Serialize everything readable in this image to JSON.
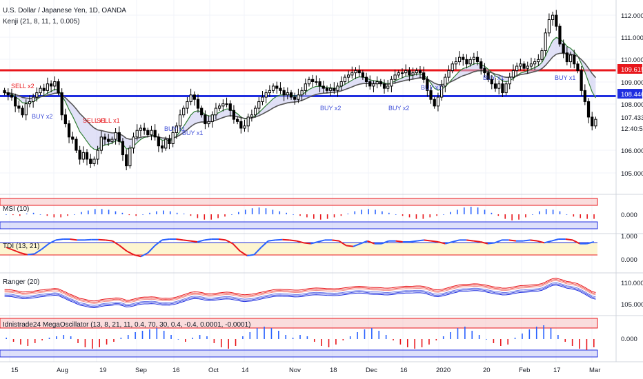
{
  "header": {
    "symbol": "U.S. Dollar / Japanese Yen, 1D, OANDA",
    "indicator": "Kenji (21, 8, 11, 1, 0.005)"
  },
  "price_axis": {
    "ticks": [
      "112.000",
      "111.000",
      "110.000",
      "109.000",
      "108.000",
      "107.433",
      "106.000",
      "105.000"
    ],
    "markers": [
      {
        "label": "109.615",
        "color": "#e8161b"
      },
      {
        "label": "108.446",
        "color": "#1f2ee0"
      },
      {
        "label": "12:40:59",
        "color": "#ffffff"
      }
    ]
  },
  "signals": {
    "sell_labels": [
      "SELL x2",
      "SELL x1",
      "SELL x1"
    ],
    "buy_labels": [
      "BUY x2",
      "BUY x1",
      "BUY x1",
      "BUY x2",
      "BUY x2",
      "BUY x1",
      "BUY x1",
      "BUY x1"
    ]
  },
  "panes": {
    "msi": {
      "title": "MSI (10)",
      "tick": "0.000"
    },
    "tdi": {
      "title": "TDI (13, 21)",
      "ticks": [
        "1.000",
        "0.000"
      ]
    },
    "ranger": {
      "title": "Ranger (20)",
      "ticks": [
        "110.000",
        "105.000"
      ]
    },
    "mega": {
      "title": "Idnistrade24 MegaOscillator (13, 8, 21, 11, 0.4, 70, 30, 0.4, -0.4, 0.0001, -0.0001)",
      "tick": "0.000"
    }
  },
  "time_axis": [
    "15",
    "Aug",
    "19",
    "Sep",
    "16",
    "Oct",
    "14",
    "Nov",
    "18",
    "Dec",
    "16",
    "2020",
    "20",
    "Feb",
    "17",
    "Mar"
  ],
  "chart_data": [
    {
      "type": "candlestick",
      "title": "U.S. Dollar / Japanese Yen, 1D, OANDA",
      "ylim": [
        104.2,
        112.6
      ],
      "levels": [
        109.615,
        108.446
      ],
      "last_price": 107.433,
      "closes": [
        108.6,
        108.5,
        108.4,
        108.0,
        107.9,
        107.6,
        108.1,
        108.2,
        108.4,
        108.6,
        108.8,
        108.7,
        109.0,
        108.9,
        109.1,
        108.6,
        107.6,
        107.2,
        106.6,
        106.5,
        106.0,
        105.6,
        105.9,
        105.6,
        105.4,
        105.6,
        106.0,
        106.6,
        106.5,
        106.4,
        106.5,
        106.8,
        106.4,
        105.8,
        105.3,
        106.1,
        106.6,
        106.9,
        107.0,
        106.9,
        106.7,
        106.9,
        106.6,
        106.2,
        106.1,
        106.5,
        106.3,
        106.8,
        107.1,
        107.6,
        107.9,
        108.2,
        108.5,
        108.3,
        107.9,
        107.6,
        107.2,
        107.3,
        107.6,
        107.9,
        108.0,
        108.1,
        108.1,
        107.8,
        107.4,
        107.3,
        107.0,
        107.1,
        107.5,
        107.6,
        107.9,
        108.2,
        108.4,
        108.6,
        108.7,
        108.9,
        108.8,
        108.7,
        108.5,
        108.6,
        108.4,
        108.3,
        108.5,
        108.7,
        109.0,
        109.2,
        109.1,
        109.1,
        108.9,
        108.8,
        108.7,
        108.8,
        108.7,
        108.9,
        109.1,
        109.3,
        109.4,
        109.5,
        109.6,
        109.5,
        109.3,
        109.1,
        108.9,
        109.0,
        109.1,
        109.0,
        108.8,
        108.9,
        109.2,
        109.4,
        109.5,
        109.5,
        109.6,
        109.4,
        109.5,
        109.6,
        109.5,
        109.2,
        108.7,
        108.3,
        108.0,
        108.4,
        108.9,
        109.3,
        109.6,
        109.9,
        110.0,
        110.2,
        110.1,
        109.9,
        110.1,
        110.2,
        110.0,
        109.7,
        109.5,
        109.2,
        109.0,
        108.8,
        109.0,
        108.6,
        109.0,
        109.3,
        109.6,
        109.8,
        109.9,
        109.7,
        109.8,
        109.9,
        110.0,
        110.1,
        110.5,
        111.3,
        111.9,
        112.1,
        111.6,
        110.8,
        110.4,
        110.0,
        110.3,
        109.9,
        109.6,
        108.7,
        108.2,
        107.5,
        107.1,
        107.4
      ]
    },
    {
      "type": "bar",
      "title": "MSI (10)",
      "values": [
        0.0,
        -0.05,
        -0.1,
        0.05,
        0.1,
        0.0,
        -0.1,
        -0.2,
        -0.2,
        -0.1,
        0.0,
        0.15,
        0.25,
        0.35,
        0.35,
        0.3,
        0.2,
        0.1,
        -0.05,
        -0.1,
        0.0,
        0.1,
        0.2,
        0.25,
        0.2,
        0.1,
        0.05,
        -0.1,
        -0.25,
        -0.35,
        -0.35,
        -0.25,
        -0.15,
        0.0,
        0.15,
        0.3,
        0.4,
        0.45,
        0.4,
        0.3,
        0.2,
        0.1,
        0.0,
        -0.1,
        -0.2,
        -0.3,
        -0.35,
        -0.3,
        -0.2,
        -0.1,
        0.05,
        0.2,
        0.3,
        0.35,
        0.3,
        0.2,
        0.1,
        0.0,
        -0.1,
        -0.2,
        -0.3,
        -0.3,
        -0.2,
        -0.1,
        0.0,
        0.15,
        0.3,
        0.45,
        0.5,
        0.45,
        0.3,
        0.1,
        -0.1,
        -0.3,
        -0.4,
        -0.35,
        -0.2,
        0.0,
        0.2,
        0.35,
        0.3,
        0.2,
        0.0,
        -0.15,
        -0.25,
        -0.3,
        -0.3
      ]
    },
    {
      "type": "line",
      "title": "TDI (13, 21)",
      "ylim": [
        -0.1,
        1.1
      ],
      "values": [
        0.5,
        0.35,
        0.2,
        0.1,
        0.15,
        0.4,
        0.7,
        0.9,
        0.95,
        0.95,
        0.9,
        0.9,
        0.92,
        0.92,
        0.9,
        0.85,
        0.6,
        0.3,
        0.1,
        0.0,
        0.2,
        0.6,
        0.9,
        0.95,
        0.95,
        0.9,
        0.85,
        0.8,
        0.9,
        0.95,
        0.95,
        0.9,
        0.7,
        0.3,
        0.05,
        0.1,
        0.5,
        0.85,
        0.9,
        0.92,
        0.9,
        0.85,
        0.75,
        0.7,
        0.8,
        0.9,
        0.9,
        0.85,
        0.6,
        0.55,
        0.7,
        0.85,
        0.7,
        0.7,
        0.85,
        0.85,
        0.8,
        0.8,
        0.85,
        0.9,
        0.85,
        0.8,
        0.7,
        0.8,
        0.9,
        0.9,
        0.85,
        0.8,
        0.7,
        0.75,
        0.9,
        0.9,
        0.85,
        0.85,
        0.9,
        0.85,
        0.75,
        0.85,
        0.95,
        0.95,
        0.9,
        0.7,
        0.7,
        0.8
      ]
    },
    {
      "type": "line",
      "title": "Ranger (20)",
      "ylim": [
        104.0,
        113.0
      ]
    },
    {
      "type": "bar",
      "title": "Idnistrade24 MegaOscillator (13, 8, 21, 11, 0.4, 70, 30, 0.4, -0.4, 0.0001, -0.0001)",
      "values": [
        0.1,
        -0.2,
        -0.4,
        -0.5,
        -0.3,
        -0.1,
        0.1,
        0.2,
        0.3,
        0.2,
        -0.3,
        -0.6,
        -0.7,
        -0.6,
        -0.4,
        -0.2,
        0.1,
        0.3,
        0.5,
        0.6,
        0.7,
        0.8,
        0.6,
        0.3,
        0.0,
        -0.2,
        0.1,
        0.3,
        0.2,
        -0.3,
        -0.6,
        -0.7,
        -0.5,
        0.2,
        0.5,
        0.8,
        0.9,
        0.8,
        0.6,
        0.3,
        0.1,
        0.3,
        0.2,
        -0.2,
        -0.5,
        -0.6,
        -0.4,
        -0.1,
        0.2,
        0.5,
        0.7,
        0.8,
        0.6,
        0.3,
        -0.1,
        -0.4,
        -0.6,
        -0.7,
        -0.6,
        -0.4,
        -0.1,
        0.2,
        0.5,
        0.8,
        0.9,
        0.6,
        0.3,
        0.0,
        -0.3,
        -0.5,
        -0.4,
        0.1,
        0.4,
        0.7,
        0.9,
        1.0,
        0.8,
        0.3,
        -0.2,
        -0.5,
        -0.7,
        -0.8,
        -0.6
      ]
    }
  ]
}
